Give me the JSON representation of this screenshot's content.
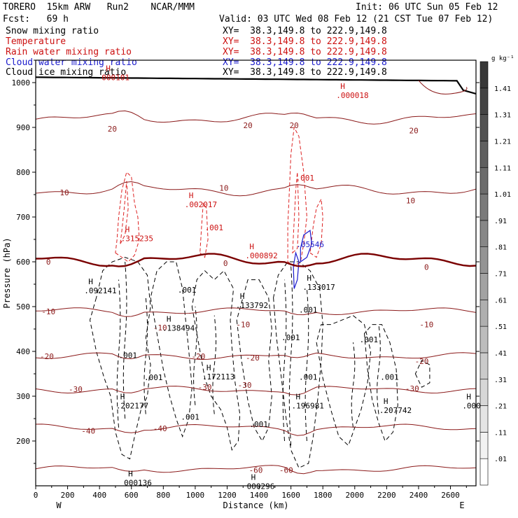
{
  "header": {
    "model": "TORERO  15km ARW   Run2    NCAR/MMM",
    "init": "Init: 06 UTC Sun 05 Feb 12",
    "fcst": "Fcst:   69 h",
    "valid": "Valid: 03 UTC Wed 08 Feb 12 (21 CST Tue 07 Feb 12)",
    "fields": [
      {
        "label": "Snow mixing ratio",
        "xy": "XY=  38.3,149.8 to 222.9,149.8",
        "color": "#000000"
      },
      {
        "label": "Temperature",
        "xy": "XY=  38.3,149.8 to 222.9,149.8",
        "color": "#cc1111"
      },
      {
        "label": "Rain water mixing ratio",
        "xy": "XY=  38.3,149.8 to 222.9,149.8",
        "color": "#cc1111"
      },
      {
        "label": "Cloud water mixing ratio",
        "xy": "XY=  38.3,149.8 to 222.9,149.8",
        "color": "#1a1acc"
      },
      {
        "label": "Cloud ice mixing ratio",
        "xy": "XY=  38.3,149.8 to 222.9,149.8",
        "color": "#000000"
      }
    ]
  },
  "chart_data": {
    "type": "cross-section",
    "xlabel": "Distance (km)",
    "ylabel": "Pressure (hPa)",
    "xlim": [
      0,
      2760
    ],
    "ylim": [
      1050,
      100
    ],
    "x_ticks": [
      0,
      200,
      400,
      600,
      800,
      1000,
      1200,
      1400,
      1600,
      1800,
      2000,
      2200,
      2400,
      2600
    ],
    "y_ticks": [
      200,
      300,
      400,
      500,
      600,
      700,
      800,
      900,
      1000
    ],
    "x_end_labels": {
      "left": "W",
      "right": "E"
    },
    "colorbar": {
      "unit": "g kg⁻¹",
      "ticks": [
        ".01",
        ".11",
        ".21",
        ".31",
        ".41",
        ".51",
        ".61",
        ".71",
        ".81",
        ".91",
        "1.01",
        "1.11",
        "1.21",
        "1.31",
        "1.41"
      ]
    },
    "temperature_contours": [
      {
        "value": -60,
        "label": "-60",
        "pressure": 138,
        "labels_at": [
          {
            "x": 1380,
            "p": 135
          },
          {
            "x": 1570,
            "p": 135
          }
        ]
      },
      {
        "value": -40,
        "label": "-40",
        "pressure": 230,
        "labels_at": [
          {
            "x": 330,
            "p": 223
          },
          {
            "x": 780,
            "p": 228
          }
        ]
      },
      {
        "value": -30,
        "label": "-30",
        "pressure": 315,
        "labels_at": [
          {
            "x": 250,
            "p": 316
          },
          {
            "x": 1060,
            "p": 320
          },
          {
            "x": 1310,
            "p": 325
          },
          {
            "x": 2360,
            "p": 317
          }
        ]
      },
      {
        "value": -20,
        "label": "-20",
        "pressure": 390,
        "labels_at": [
          {
            "x": 70,
            "p": 389
          },
          {
            "x": 1020,
            "p": 389
          },
          {
            "x": 1360,
            "p": 386
          },
          {
            "x": 2420,
            "p": 378
          }
        ]
      },
      {
        "value": -10,
        "label": "-10",
        "pressure": 490,
        "labels_at": [
          {
            "x": 80,
            "p": 489
          },
          {
            "x": 780,
            "p": 453
          },
          {
            "x": 1300,
            "p": 460
          },
          {
            "x": 2450,
            "p": 460
          }
        ]
      },
      {
        "value": 0,
        "label": "0",
        "pressure": 605,
        "labels_at": [
          {
            "x": 80,
            "p": 600
          },
          {
            "x": 1190,
            "p": 597
          },
          {
            "x": 2450,
            "p": 588
          }
        ]
      },
      {
        "value": 10,
        "label": "10",
        "pressure": 760,
        "labels_at": [
          {
            "x": 180,
            "p": 755
          },
          {
            "x": 1180,
            "p": 765
          },
          {
            "x": 2350,
            "p": 737
          }
        ]
      },
      {
        "value": 20,
        "label": "20",
        "pressure": 920,
        "labels_at": [
          {
            "x": 480,
            "p": 897
          },
          {
            "x": 1330,
            "p": 905
          },
          {
            "x": 1620,
            "p": 905
          },
          {
            "x": 2370,
            "p": 893
          }
        ]
      }
    ],
    "max_labels": [
      {
        "x": 580,
        "p": 118,
        "mark": "H",
        "value": "000136",
        "color": "#000000"
      },
      {
        "x": 1350,
        "p": 110,
        "mark": "H",
        "value": "000296",
        "color": "#000000"
      },
      {
        "x": 530,
        "p": 290,
        "mark": "H",
        "value": ".202177",
        "color": "#000000"
      },
      {
        "x": 1630,
        "p": 290,
        "mark": "H",
        "value": ".196981",
        "color": "#000000"
      },
      {
        "x": 2180,
        "p": 280,
        "mark": "H",
        "value": ".207742",
        "color": "#000000"
      },
      {
        "x": 2700,
        "p": 290,
        "mark": "H",
        "value": ".000",
        "color": "#000000"
      },
      {
        "x": 1070,
        "p": 355,
        "mark": "H",
        "value": ".172113",
        "color": "#000000"
      },
      {
        "x": 820,
        "p": 463,
        "mark": "H",
        "value": ".138494",
        "color": "#000000"
      },
      {
        "x": 1280,
        "p": 514,
        "mark": "H",
        "value": ".133792",
        "color": "#000000"
      },
      {
        "x": 330,
        "p": 547,
        "mark": "H",
        "value": ".092141",
        "color": "#000000"
      },
      {
        "x": 1700,
        "p": 555,
        "mark": "H",
        "value": ".133017",
        "color": "#000000"
      },
      {
        "x": 560,
        "p": 663,
        "mark": "H",
        "value": ".315235",
        "color": "#cc1111"
      },
      {
        "x": 1340,
        "p": 625,
        "mark": "H",
        "value": ".000892",
        "color": "#cc1111"
      },
      {
        "x": 1660,
        "p": 650,
        "mark": "",
        "value": ".05546",
        "color": "#1a1acc"
      },
      {
        "x": 960,
        "p": 739,
        "mark": "H",
        "value": ".002017",
        "color": "#cc1111"
      },
      {
        "x": 1910,
        "p": 983,
        "mark": "H",
        "value": ".000018",
        "color": "#cc1111"
      },
      {
        "x": 440,
        "p": 1023,
        "mark": "H",
        "value": "000101",
        "color": "#cc1111"
      }
    ],
    "contour_value_labels": [
      {
        "x": 910,
        "p": 248,
        "value": ".001",
        "color": "#000000"
      },
      {
        "x": 1340,
        "p": 231,
        "value": ".001",
        "color": "#000000"
      },
      {
        "x": 680,
        "p": 336,
        "value": ".001",
        "color": "#000000"
      },
      {
        "x": 1650,
        "p": 337,
        "value": ".001",
        "color": "#000000"
      },
      {
        "x": 2160,
        "p": 337,
        "value": ".001",
        "color": "#000000"
      },
      {
        "x": 520,
        "p": 385,
        "value": ".001",
        "color": "#000000"
      },
      {
        "x": 1540,
        "p": 425,
        "value": ".001",
        "color": "#000000"
      },
      {
        "x": 2030,
        "p": 420,
        "value": ".001",
        "color": "#000000"
      },
      {
        "x": 1650,
        "p": 487,
        "value": ".001",
        "color": "#000000"
      },
      {
        "x": 890,
        "p": 531,
        "value": ".001",
        "color": "#000000"
      },
      {
        "x": 1060,
        "p": 670,
        "value": ".001",
        "color": "#cc1111"
      },
      {
        "x": 1630,
        "p": 781,
        "value": ".001",
        "color": "#cc1111"
      }
    ]
  }
}
